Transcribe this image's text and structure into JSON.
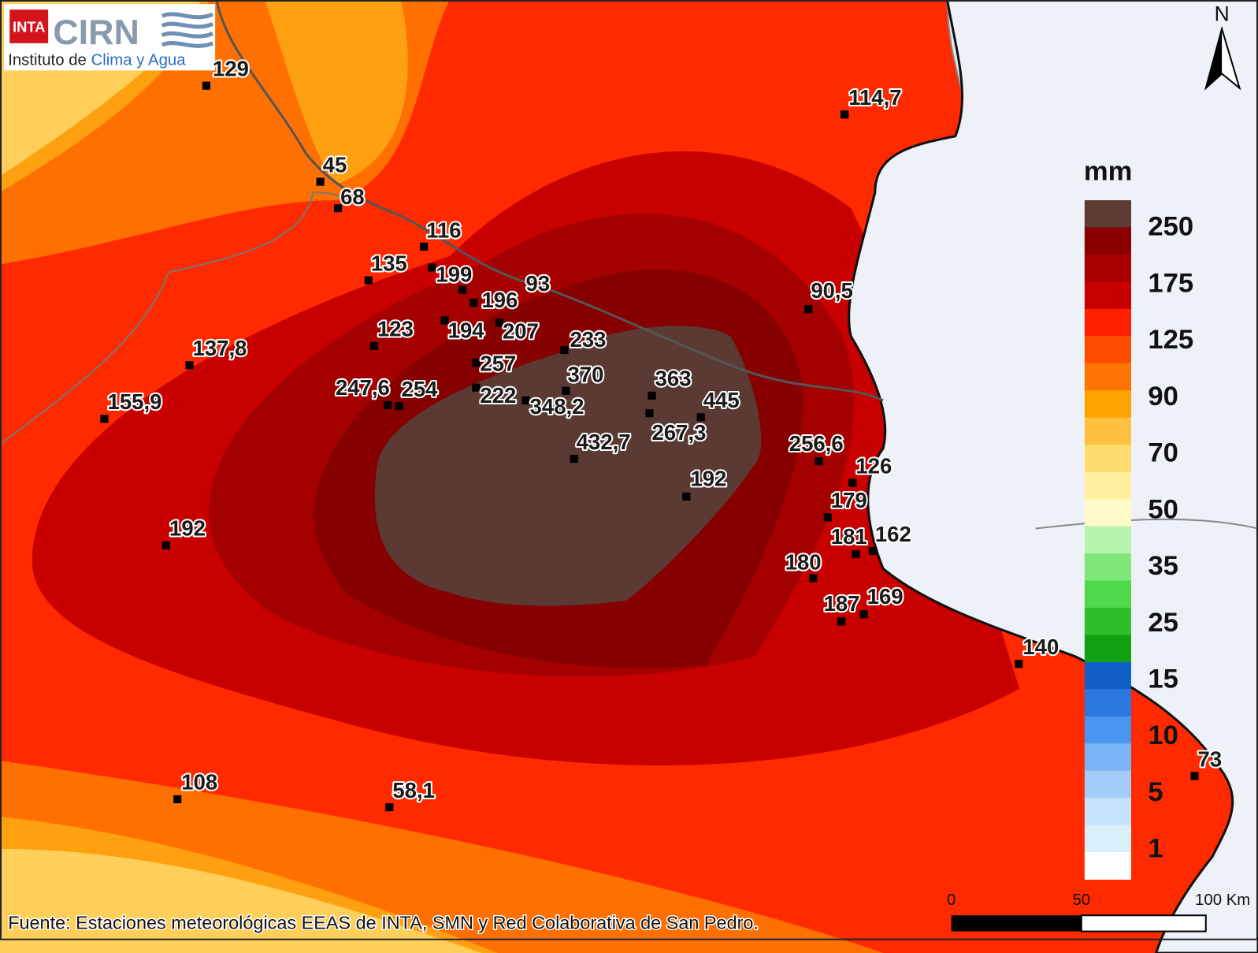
{
  "logo": {
    "agency": "INTA",
    "name": "CIRN",
    "subtitle_prefix": "Instituto de",
    "subtitle_highlight": "Clima y Agua"
  },
  "north": "N",
  "legend": {
    "unit": "mm",
    "labels": [
      "250",
      "175",
      "125",
      "90",
      "70",
      "50",
      "35",
      "25",
      "15",
      "10",
      "5",
      "1"
    ]
  },
  "scale_bar": {
    "labels": [
      "0",
      "50",
      "100 Km"
    ]
  },
  "stations": [
    "129",
    "114,7",
    "45",
    "68",
    "116",
    "135",
    "199",
    "93",
    "196",
    "123",
    "194",
    "207",
    "233",
    "257",
    "90,5",
    "137,8",
    "155,9",
    "247,6",
    "254",
    "222",
    "370",
    "348,2",
    "363",
    "445",
    "267,3",
    "432,7",
    "256,6",
    "126",
    "192",
    "179",
    "192",
    "181",
    "162",
    "180",
    "187",
    "169",
    "140",
    "73",
    "108",
    "58,1"
  ],
  "source": "Fuente: Estaciones meteorológicas EEAS de INTA, SMN y Red Colaborativa de San Pedro."
}
